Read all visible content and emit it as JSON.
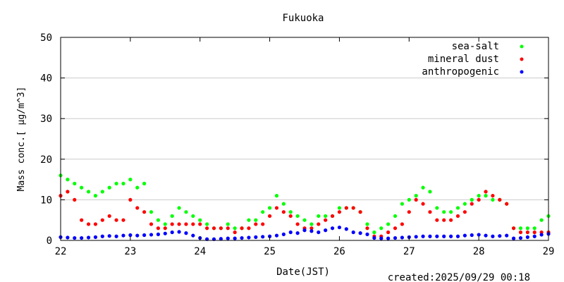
{
  "chart_data": {
    "type": "scatter",
    "title": "Fukuoka",
    "xlabel": "Date(JST)",
    "ylabel": "Mass conc.[ μg/m^3]",
    "xlim": [
      22,
      29
    ],
    "ylim": [
      0,
      50
    ],
    "x_ticks": [
      "22",
      "23",
      "24",
      "25",
      "26",
      "27",
      "28",
      "29"
    ],
    "y_ticks": [
      "0",
      "10",
      "20",
      "30",
      "40",
      "50"
    ],
    "created": "created:2025/09/29 00:18",
    "legend_position": "top-right",
    "series": [
      {
        "name": "sea-salt",
        "color": "#00ff00",
        "x": [
          22.0,
          22.1,
          22.2,
          22.3,
          22.4,
          22.5,
          22.6,
          22.7,
          22.8,
          22.9,
          23.0,
          23.1,
          23.2,
          23.3,
          23.4,
          23.5,
          23.6,
          23.7,
          23.8,
          23.9,
          24.0,
          24.1,
          24.2,
          24.3,
          24.4,
          24.5,
          24.6,
          24.7,
          24.8,
          24.9,
          25.0,
          25.1,
          25.2,
          25.3,
          25.4,
          25.5,
          25.6,
          25.7,
          25.8,
          25.9,
          26.0,
          26.1,
          26.2,
          26.3,
          26.4,
          26.5,
          26.6,
          26.7,
          26.8,
          26.9,
          27.0,
          27.1,
          27.2,
          27.3,
          27.4,
          27.5,
          27.6,
          27.7,
          27.8,
          27.9,
          28.0,
          28.1,
          28.2,
          28.3,
          28.4,
          28.5,
          28.6,
          28.7,
          28.8,
          28.9,
          29.0
        ],
        "values": [
          16,
          15,
          14,
          13,
          12,
          11,
          12,
          13,
          14,
          14,
          15,
          13,
          14,
          7,
          5,
          4,
          6,
          8,
          7,
          6,
          5,
          4,
          3,
          3,
          4,
          3,
          3,
          5,
          5,
          7,
          8,
          11,
          9,
          7,
          6,
          5,
          4,
          6,
          6,
          6,
          8,
          8,
          8,
          7,
          4,
          2,
          3,
          4,
          6,
          9,
          10,
          11,
          13,
          12,
          8,
          7,
          7,
          8,
          9,
          10,
          11,
          11,
          10,
          10,
          9,
          3,
          3,
          3,
          3,
          5,
          6
        ]
      },
      {
        "name": "mineral dust",
        "color": "#ff0000",
        "x": [
          22.0,
          22.1,
          22.2,
          22.3,
          22.4,
          22.5,
          22.6,
          22.7,
          22.8,
          22.9,
          23.0,
          23.1,
          23.2,
          23.3,
          23.4,
          23.5,
          23.6,
          23.7,
          23.8,
          23.9,
          24.0,
          24.1,
          24.2,
          24.3,
          24.4,
          24.5,
          24.6,
          24.7,
          24.8,
          24.9,
          25.0,
          25.1,
          25.2,
          25.3,
          25.4,
          25.5,
          25.6,
          25.7,
          25.8,
          25.9,
          26.0,
          26.1,
          26.2,
          26.3,
          26.4,
          26.5,
          26.6,
          26.7,
          26.8,
          26.9,
          27.0,
          27.1,
          27.2,
          27.3,
          27.4,
          27.5,
          27.6,
          27.7,
          27.8,
          27.9,
          28.0,
          28.1,
          28.2,
          28.3,
          28.4,
          28.5,
          28.6,
          28.7,
          28.8,
          28.9,
          29.0
        ],
        "values": [
          11,
          12,
          10,
          5,
          4,
          4,
          5,
          6,
          5,
          5,
          10,
          8,
          7,
          4,
          3,
          3,
          4,
          4,
          4,
          4,
          4,
          3,
          3,
          3,
          3,
          2,
          3,
          3,
          4,
          4,
          6,
          8,
          7,
          6,
          4,
          3,
          3,
          4,
          5,
          6,
          7,
          8,
          8,
          7,
          3,
          1,
          1,
          2,
          3,
          4,
          7,
          10,
          9,
          7,
          5,
          5,
          5,
          6,
          7,
          9,
          10,
          12,
          11,
          10,
          9,
          3,
          2,
          2,
          2,
          2,
          2
        ]
      },
      {
        "name": "anthropogenic",
        "color": "#0000ff",
        "x": [
          22.0,
          22.1,
          22.2,
          22.3,
          22.4,
          22.5,
          22.6,
          22.7,
          22.8,
          22.9,
          23.0,
          23.1,
          23.2,
          23.3,
          23.4,
          23.5,
          23.6,
          23.7,
          23.8,
          23.9,
          24.0,
          24.1,
          24.2,
          24.3,
          24.4,
          24.5,
          24.6,
          24.7,
          24.8,
          24.9,
          25.0,
          25.1,
          25.2,
          25.3,
          25.4,
          25.5,
          25.6,
          25.7,
          25.8,
          25.9,
          26.0,
          26.1,
          26.2,
          26.3,
          26.4,
          26.5,
          26.6,
          26.7,
          26.8,
          26.9,
          27.0,
          27.1,
          27.2,
          27.3,
          27.4,
          27.5,
          27.6,
          27.7,
          27.8,
          27.9,
          28.0,
          28.1,
          28.2,
          28.3,
          28.4,
          28.5,
          28.6,
          28.7,
          28.8,
          28.9,
          29.0
        ],
        "values": [
          0.8,
          0.7,
          0.6,
          0.6,
          0.7,
          0.8,
          1.0,
          1.1,
          1.0,
          1.2,
          1.3,
          1.2,
          1.3,
          1.4,
          1.5,
          1.7,
          2.0,
          2.1,
          1.8,
          1.2,
          0.6,
          0.3,
          0.3,
          0.4,
          0.5,
          0.5,
          0.6,
          0.7,
          0.8,
          0.9,
          1.0,
          1.2,
          1.5,
          2.0,
          1.8,
          2.5,
          2.3,
          2.0,
          2.5,
          3.0,
          3.2,
          2.8,
          2.0,
          1.8,
          1.5,
          0.6,
          0.5,
          0.5,
          0.6,
          0.7,
          0.8,
          0.9,
          1.0,
          1.0,
          1.0,
          1.0,
          1.0,
          1.0,
          1.2,
          1.3,
          1.4,
          1.2,
          1.0,
          1.1,
          1.2,
          0.5,
          0.6,
          0.8,
          1.0,
          1.4,
          1.6
        ]
      }
    ]
  }
}
